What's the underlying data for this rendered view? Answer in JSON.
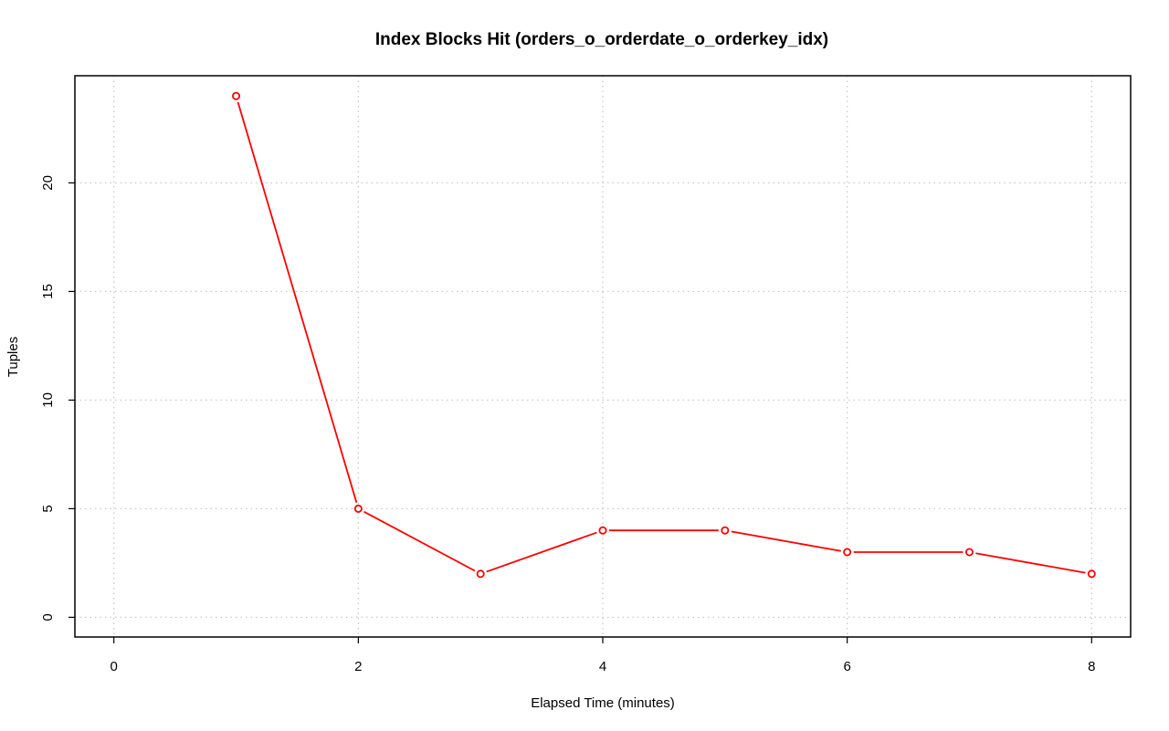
{
  "chart_data": {
    "type": "line",
    "title": "Index Blocks Hit (orders_o_orderdate_o_orderkey_idx)",
    "xlabel": "Elapsed Time (minutes)",
    "ylabel": "Tuples",
    "xlim": [
      0,
      8
    ],
    "ylim": [
      0,
      24
    ],
    "x_ticks": [
      0,
      2,
      4,
      6,
      8
    ],
    "y_ticks": [
      0,
      5,
      10,
      15,
      20
    ],
    "grid": true,
    "series": [
      {
        "x": [
          1,
          2,
          3,
          4,
          5,
          6,
          7,
          8
        ],
        "values": [
          24,
          5,
          2,
          4,
          4,
          3,
          3,
          2
        ],
        "color": "#ff0000",
        "marker": "open-circle"
      }
    ]
  }
}
